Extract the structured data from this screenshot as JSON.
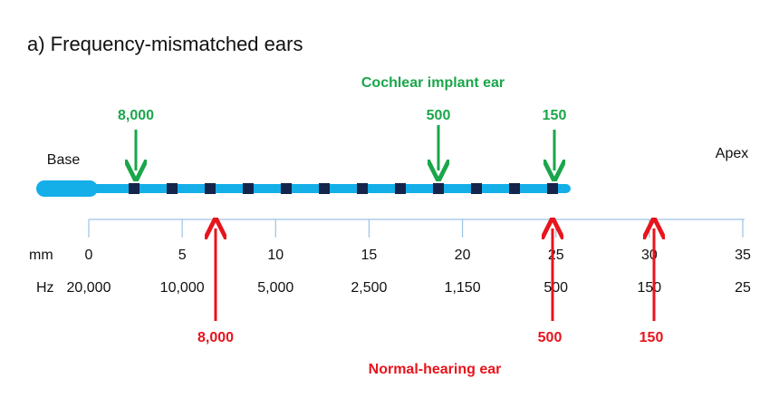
{
  "title": "a) Frequency-mismatched ears",
  "labels": {
    "base": "Base",
    "apex": "Apex",
    "cochlear": "Cochlear implant ear",
    "normal": "Normal-hearing ear"
  },
  "scale": {
    "mm_label": "mm",
    "hz_label": "Hz",
    "mm": [
      0,
      5,
      10,
      15,
      20,
      25,
      30,
      35
    ],
    "hz": [
      "20,000",
      "10,000",
      "5,000",
      "2,500",
      "1,150",
      "500",
      "150",
      "25"
    ]
  },
  "implant_arrows": [
    "8,000",
    "500",
    "150"
  ],
  "normal_arrows": [
    "8,000",
    "500",
    "150"
  ]
}
